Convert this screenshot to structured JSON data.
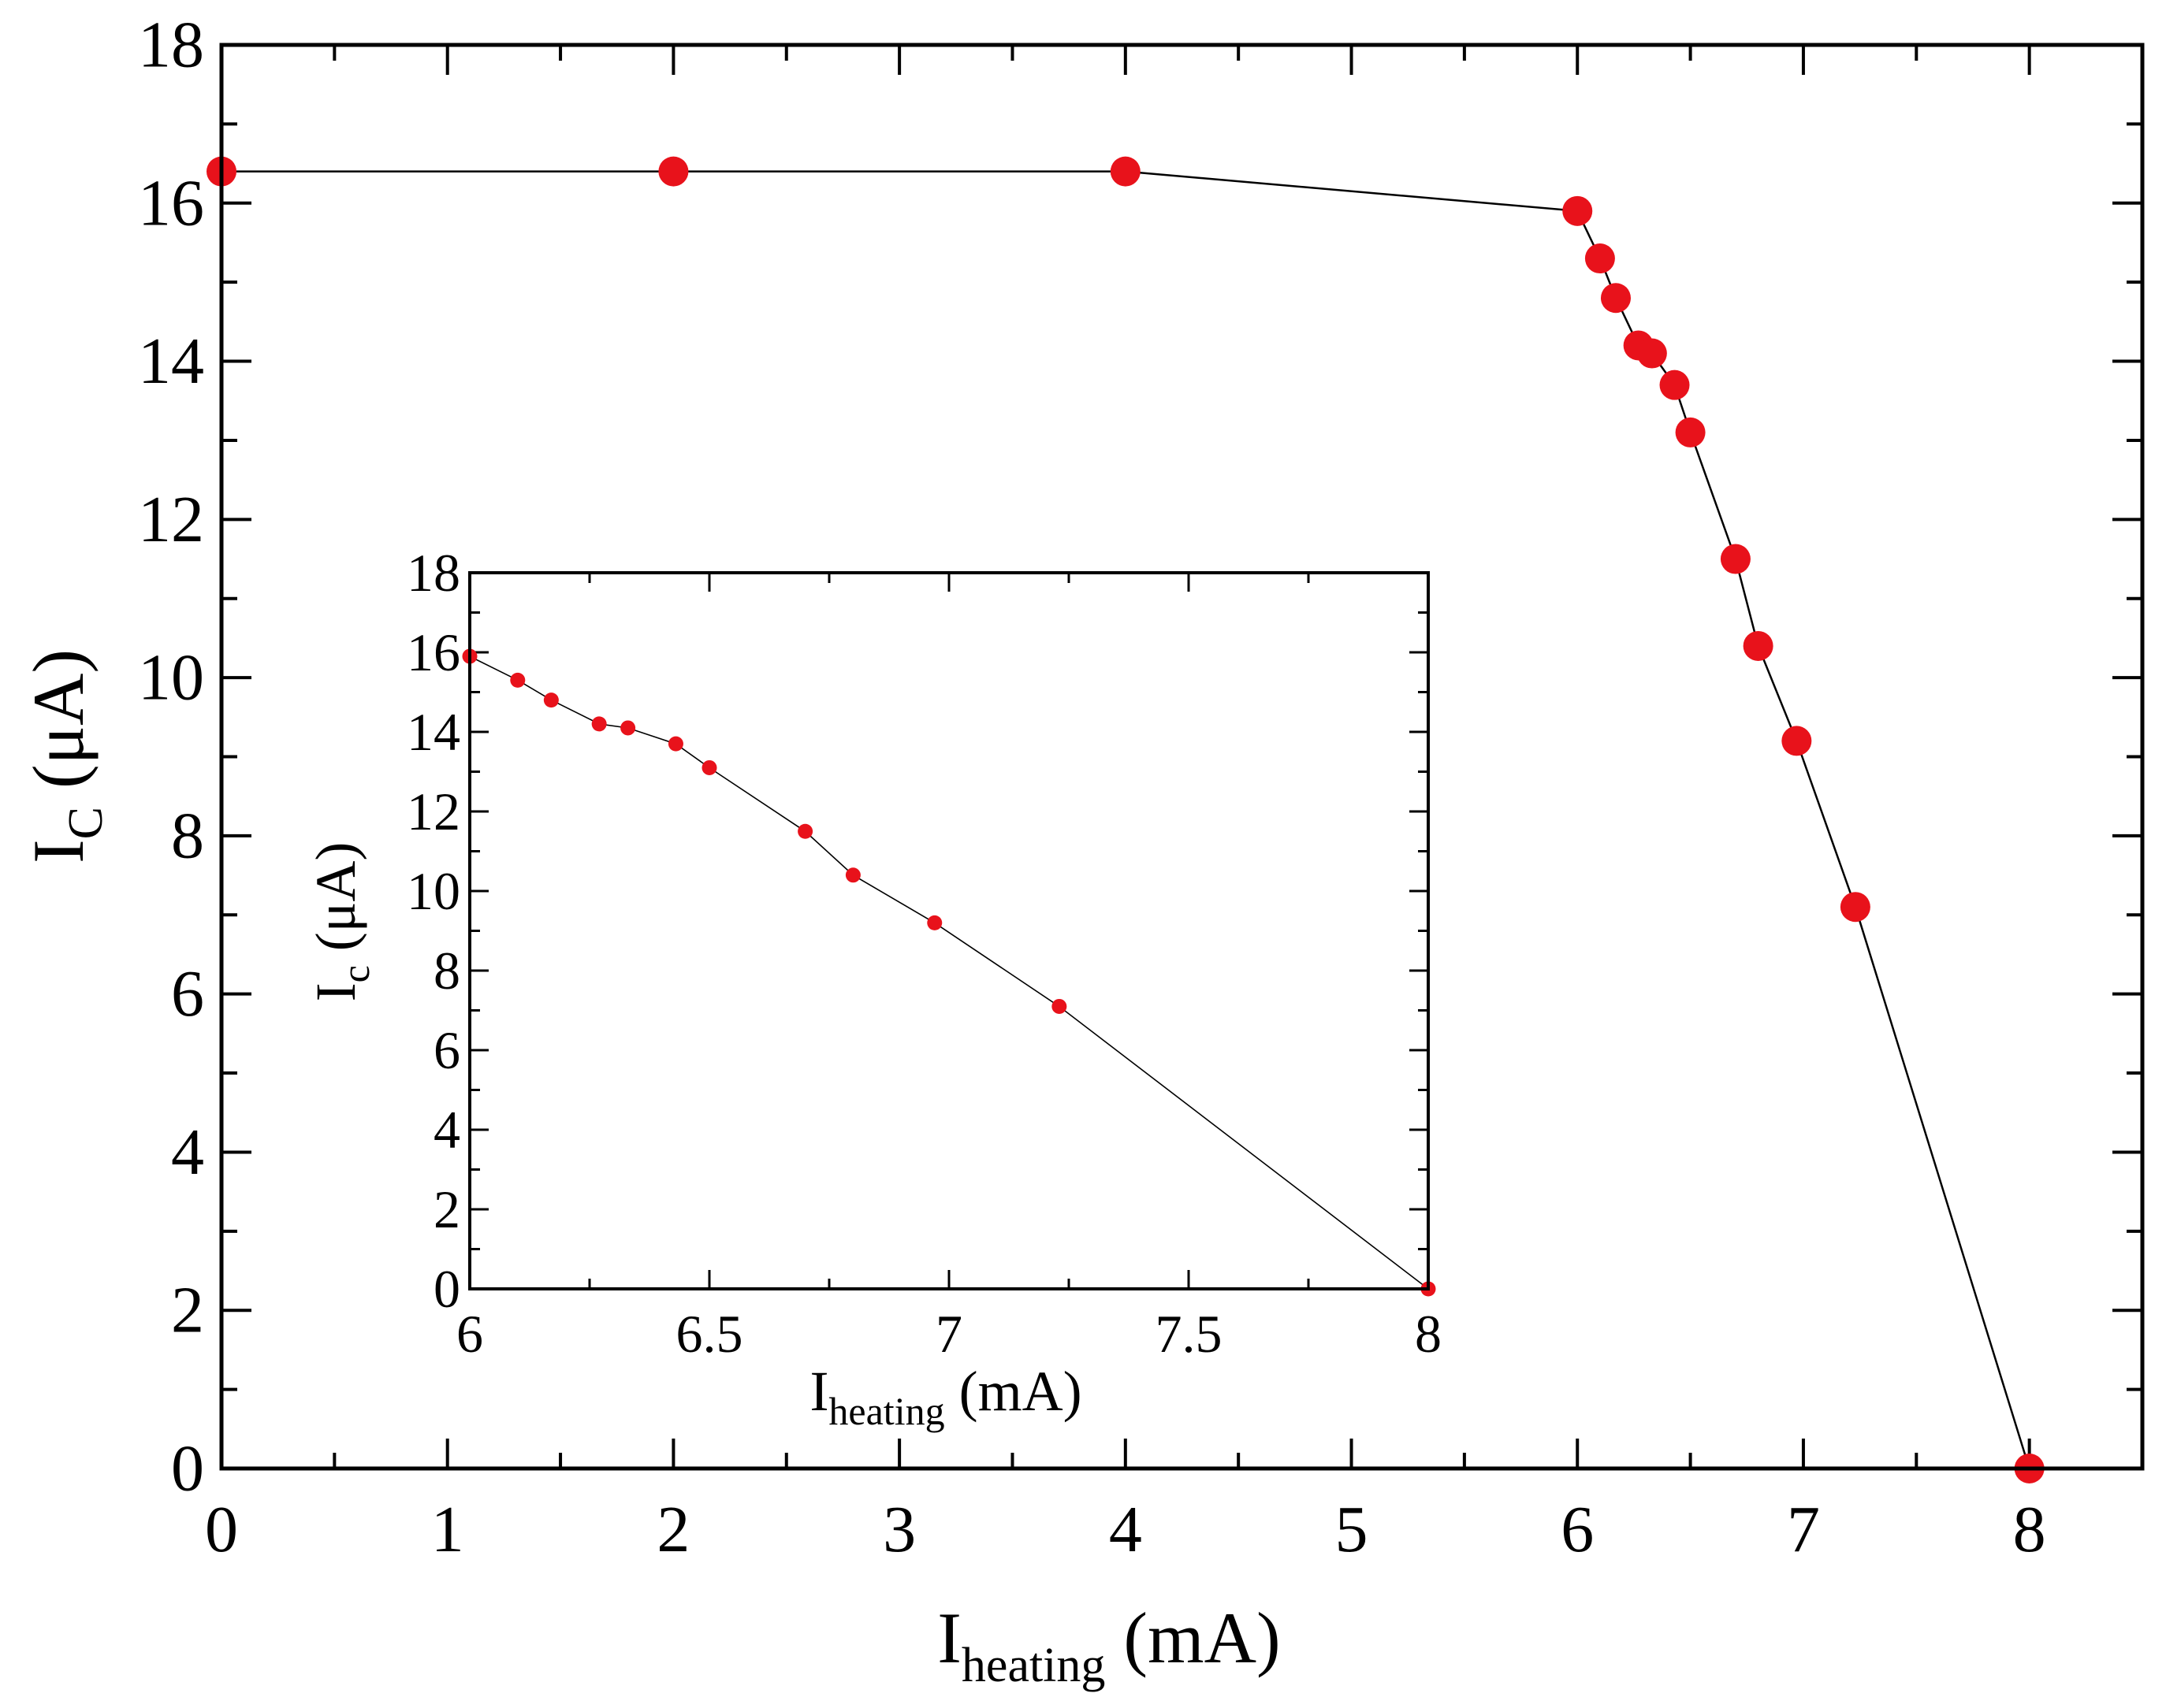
{
  "chart_data": [
    {
      "id": "main",
      "type": "line",
      "title": "",
      "xlabel": {
        "base": "I",
        "sub": "heating",
        "unit": " (mA)"
      },
      "ylabel": {
        "base": "I",
        "sub": "C",
        "unit": " (μA)"
      },
      "xlim": [
        0,
        8.5
      ],
      "ylim": [
        0,
        18
      ],
      "xticks": [
        "0",
        "1",
        "2",
        "3",
        "4",
        "5",
        "6",
        "7",
        "8"
      ],
      "yticks": [
        "0",
        "2",
        "4",
        "6",
        "8",
        "10",
        "12",
        "14",
        "16",
        "18"
      ],
      "grid": false,
      "marker_color": "#e8121b",
      "line_color": "#000000",
      "series": [
        {
          "name": "Ic",
          "x": [
            0,
            2,
            4,
            6,
            6.1,
            6.17,
            6.27,
            6.33,
            6.43,
            6.5,
            6.7,
            6.8,
            6.97,
            7.23,
            8.0
          ],
          "y": [
            16.4,
            16.4,
            16.4,
            15.9,
            15.3,
            14.8,
            14.2,
            14.1,
            13.7,
            13.1,
            11.5,
            10.4,
            9.2,
            7.1,
            0
          ]
        }
      ]
    },
    {
      "id": "inset",
      "type": "line",
      "title": "",
      "xlabel": {
        "base": "I",
        "sub": "heating",
        "unit": " (mA)"
      },
      "ylabel": {
        "base": "I",
        "sub": "c",
        "unit": " (μA)"
      },
      "xlim": [
        6,
        8
      ],
      "ylim": [
        0,
        18
      ],
      "xticks": [
        "6",
        "6.5",
        "7",
        "7.5",
        "8"
      ],
      "yticks": [
        "0",
        "2",
        "4",
        "6",
        "8",
        "10",
        "12",
        "14",
        "16",
        "18"
      ],
      "grid": false,
      "marker_color": "#e8121b",
      "line_color": "#000000",
      "series": [
        {
          "name": "Ic",
          "x": [
            6,
            6.1,
            6.17,
            6.27,
            6.33,
            6.43,
            6.5,
            6.7,
            6.8,
            6.97,
            7.23,
            8.0
          ],
          "y": [
            15.9,
            15.3,
            14.8,
            14.2,
            14.1,
            13.7,
            13.1,
            11.5,
            10.4,
            9.2,
            7.1,
            0
          ]
        }
      ]
    }
  ]
}
